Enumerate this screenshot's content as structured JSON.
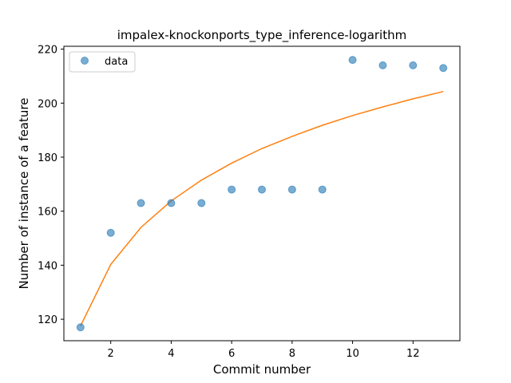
{
  "chart_data": {
    "type": "scatter",
    "title": "impalex-knockonports_type_inference-logarithm",
    "xlabel": "Commit number",
    "ylabel": "Number of instance of a feature",
    "xlim": [
      0.45,
      13.55
    ],
    "ylim": [
      112.05,
      221.05
    ],
    "xticks": [
      2,
      4,
      6,
      8,
      10,
      12
    ],
    "yticks": [
      120,
      140,
      160,
      180,
      200,
      220
    ],
    "grid": false,
    "legend": {
      "placement": "top-left",
      "entries": [
        "data"
      ]
    },
    "series": [
      {
        "name": "data",
        "kind": "scatter",
        "color": "#1f77b4",
        "x": [
          1,
          2,
          3,
          4,
          5,
          6,
          7,
          8,
          9,
          10,
          11,
          12,
          13
        ],
        "y": [
          117,
          152,
          163,
          163,
          163,
          168,
          168,
          168,
          168,
          216,
          214,
          214,
          213
        ]
      },
      {
        "kind": "line",
        "color": "#ff7f0e",
        "x": [
          1,
          2,
          3,
          4,
          5,
          6,
          7,
          8,
          9,
          10,
          11,
          12,
          13
        ],
        "y": [
          117.5,
          140.3,
          154.0,
          163.8,
          171.5,
          177.8,
          183.2,
          187.7,
          191.8,
          195.4,
          198.6,
          201.6,
          204.3
        ]
      }
    ]
  }
}
